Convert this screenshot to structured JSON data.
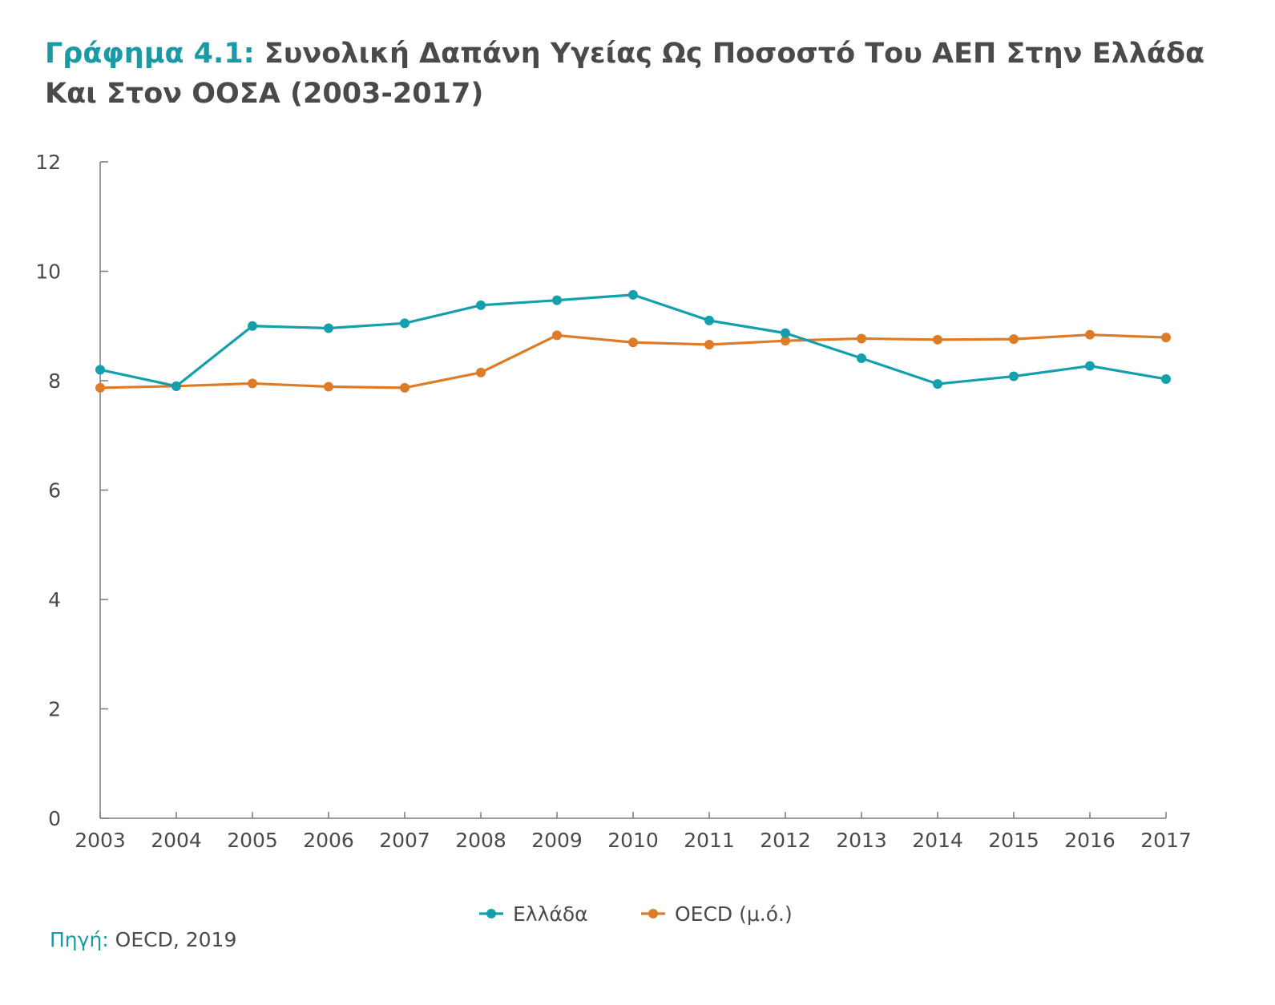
{
  "title": {
    "label": "Γράφημα 4.1:",
    "text": "Συνολική Δαπάνη Υγείας Ως Ποσοστό Του ΑΕΠ Στην Ελλάδα Και Στον ΟΟΣΑ (2003-2017)"
  },
  "source": {
    "label": "Πηγή:",
    "text": "OECD, 2019"
  },
  "colors": {
    "title_accent": "#1a9aa5",
    "greece": "#13a0ac",
    "oecd": "#de7b27",
    "axis": "#7a7a7a",
    "text": "#4a4a4a"
  },
  "chart_data": {
    "type": "line",
    "x": [
      "2003",
      "2004",
      "2005",
      "2006",
      "2007",
      "2008",
      "2009",
      "2010",
      "2011",
      "2012",
      "2013",
      "2014",
      "2015",
      "2016",
      "2017"
    ],
    "ylim": [
      0,
      12
    ],
    "yticks": [
      0,
      2,
      4,
      6,
      8,
      10,
      12
    ],
    "grid": false,
    "legend": "bottom-center",
    "series": [
      {
        "name": "Ελλάδα",
        "color": "#13a0ac",
        "values": [
          8.2,
          7.9,
          9.0,
          8.96,
          9.05,
          9.38,
          9.47,
          9.57,
          9.1,
          8.87,
          8.41,
          7.94,
          8.08,
          8.27,
          8.03
        ]
      },
      {
        "name": "OECD (μ.ό.)",
        "color": "#de7b27",
        "values": [
          7.87,
          7.9,
          7.95,
          7.89,
          7.87,
          8.15,
          8.83,
          8.7,
          8.66,
          8.73,
          8.77,
          8.75,
          8.76,
          8.84,
          8.79
        ]
      }
    ]
  }
}
